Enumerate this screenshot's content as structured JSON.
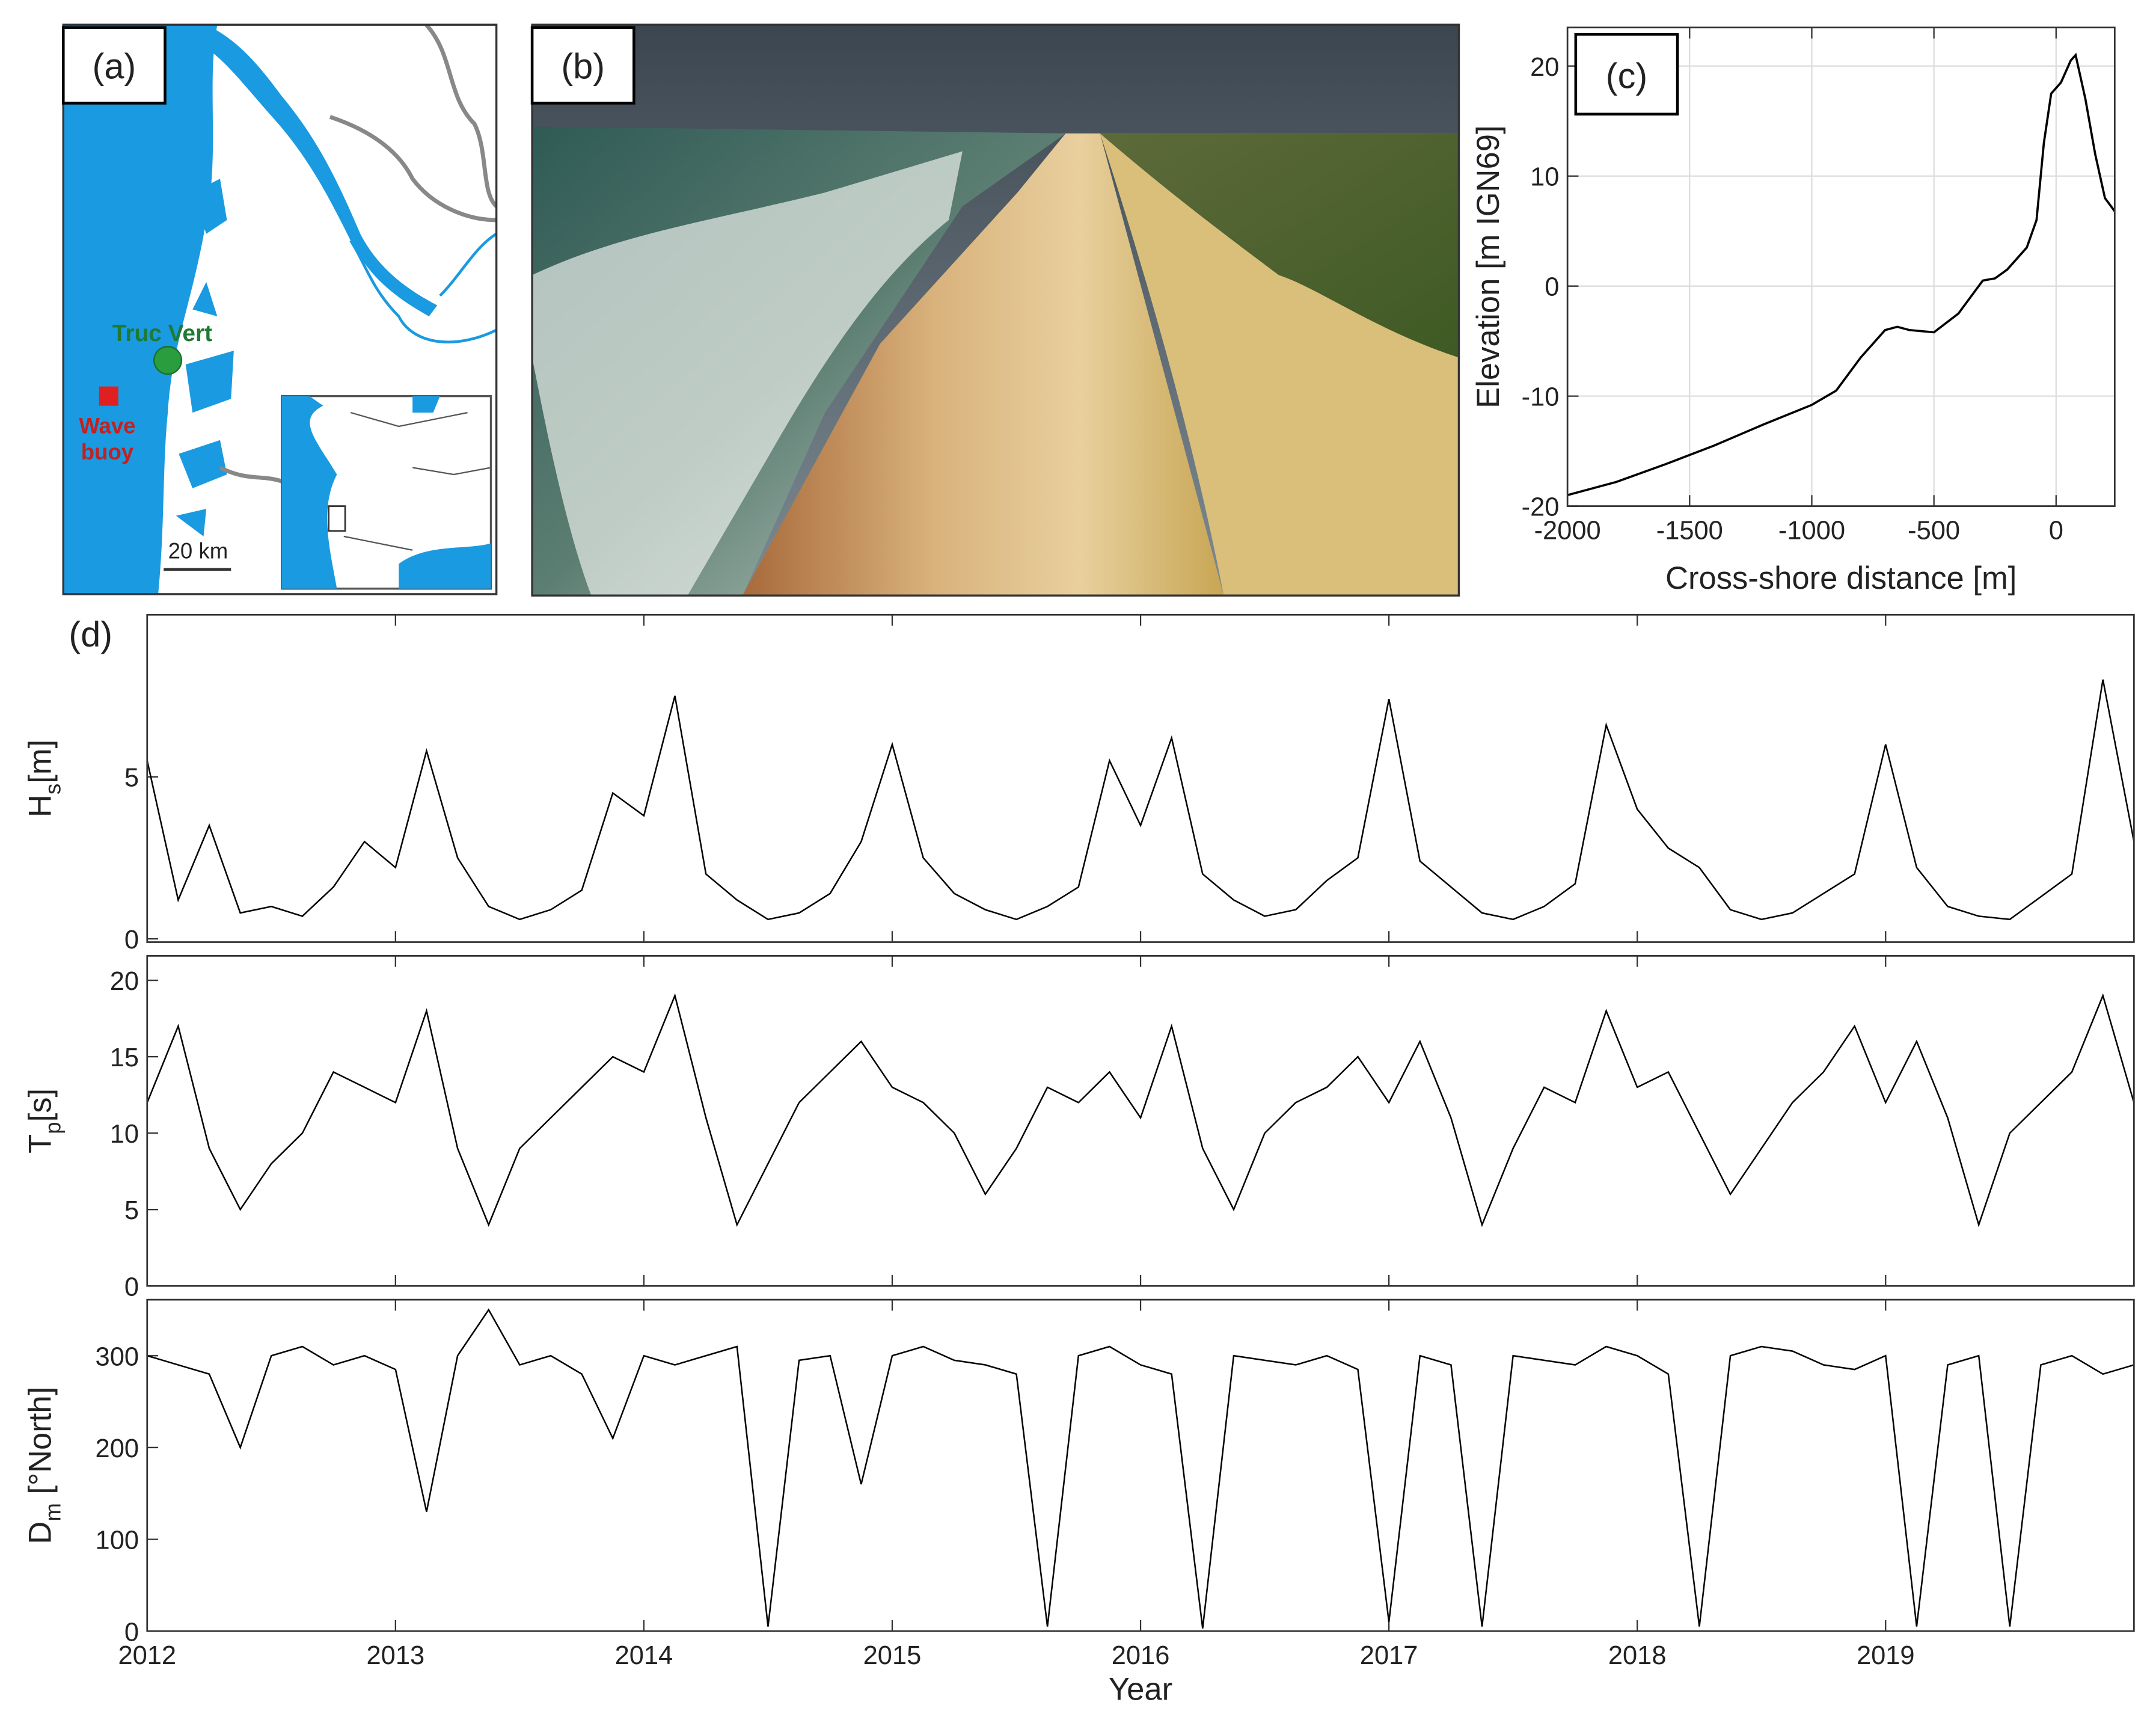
{
  "panels": {
    "a": {
      "label": "(a)",
      "site": "Truc Vert",
      "buoy": [
        "Wave",
        "buoy"
      ],
      "scale": "20 km"
    },
    "b": {
      "label": "(b)"
    },
    "d": {
      "label": "(d)"
    }
  },
  "chart_data": [
    {
      "type": "line",
      "annotation": "(c)",
      "xlabel": "Cross-shore distance [m]",
      "ylabel": "Elevation [m IGN69]",
      "x": [
        -2000,
        -1800,
        -1600,
        -1400,
        -1200,
        -1000,
        -900,
        -800,
        -700,
        -650,
        -600,
        -500,
        -400,
        -300,
        -250,
        -200,
        -120,
        -80,
        -50,
        -20,
        20,
        60,
        80,
        120,
        160,
        200,
        240
      ],
      "values": [
        -19,
        -17.8,
        -16.2,
        -14.5,
        -12.6,
        -10.8,
        -9.5,
        -6.5,
        -4,
        -3.7,
        -4,
        -4.2,
        -2.5,
        0.5,
        0.7,
        1.5,
        3.5,
        6,
        13,
        17.5,
        18.5,
        20.5,
        21,
        17,
        12,
        8,
        6.8
      ],
      "color": "#000000",
      "xlim": [
        -2000,
        240
      ],
      "ylim": [
        -20,
        23.5
      ],
      "xticks": [
        -2000,
        -1500,
        -1000,
        -500,
        0
      ],
      "yticks": [
        -20,
        -10,
        0,
        10,
        20
      ],
      "grid": true
    },
    {
      "type": "line",
      "ylabel": {
        "base": "H",
        "sub": "s",
        "unit": "[m]"
      },
      "color": "#000000",
      "x": [
        2012,
        2012.125,
        2012.25,
        2012.375,
        2012.5,
        2012.625,
        2012.75,
        2012.875,
        2013,
        2013.125,
        2013.25,
        2013.375,
        2013.5,
        2013.625,
        2013.75,
        2013.875,
        2014,
        2014.125,
        2014.25,
        2014.375,
        2014.5,
        2014.625,
        2014.75,
        2014.875,
        2015,
        2015.125,
        2015.25,
        2015.375,
        2015.5,
        2015.625,
        2015.75,
        2015.875,
        2016,
        2016.125,
        2016.25,
        2016.375,
        2016.5,
        2016.625,
        2016.75,
        2016.875,
        2017,
        2017.125,
        2017.25,
        2017.375,
        2017.5,
        2017.625,
        2017.75,
        2017.875,
        2018,
        2018.125,
        2018.25,
        2018.375,
        2018.5,
        2018.625,
        2018.75,
        2018.875,
        2019,
        2019.125,
        2019.25,
        2019.375,
        2019.5,
        2019.625,
        2019.75,
        2019.875,
        2020
      ],
      "values": [
        5.5,
        1.2,
        3.5,
        0.8,
        1.0,
        0.7,
        1.6,
        3.0,
        2.2,
        5.8,
        2.5,
        1.0,
        0.6,
        0.9,
        1.5,
        4.5,
        3.8,
        7.5,
        2.0,
        1.2,
        0.6,
        0.8,
        1.4,
        3.0,
        6.0,
        2.5,
        1.4,
        0.9,
        0.6,
        1.0,
        1.6,
        5.5,
        3.5,
        6.2,
        2.0,
        1.2,
        0.7,
        0.9,
        1.8,
        2.5,
        7.4,
        2.4,
        1.6,
        0.8,
        0.6,
        1.0,
        1.7,
        6.6,
        4.0,
        2.8,
        2.2,
        0.9,
        0.6,
        0.8,
        1.4,
        2.0,
        6.0,
        2.2,
        1.0,
        0.7,
        0.6,
        1.3,
        2.0,
        8.0,
        3.0
      ],
      "xlim": [
        2012,
        2020
      ],
      "ylim": [
        -0.1,
        10
      ],
      "xticks": [
        2012,
        2013,
        2014,
        2015,
        2016,
        2017,
        2018,
        2019
      ],
      "yticks": [
        0,
        5
      ]
    },
    {
      "type": "line",
      "ylabel": {
        "base": "T",
        "sub": "p",
        "unit": "[s]"
      },
      "color": "#000000",
      "x": [
        2012,
        2012.125,
        2012.25,
        2012.375,
        2012.5,
        2012.625,
        2012.75,
        2012.875,
        2013,
        2013.125,
        2013.25,
        2013.375,
        2013.5,
        2013.625,
        2013.75,
        2013.875,
        2014,
        2014.125,
        2014.25,
        2014.375,
        2014.5,
        2014.625,
        2014.75,
        2014.875,
        2015,
        2015.125,
        2015.25,
        2015.375,
        2015.5,
        2015.625,
        2015.75,
        2015.875,
        2016,
        2016.125,
        2016.25,
        2016.375,
        2016.5,
        2016.625,
        2016.75,
        2016.875,
        2017,
        2017.125,
        2017.25,
        2017.375,
        2017.5,
        2017.625,
        2017.75,
        2017.875,
        2018,
        2018.125,
        2018.25,
        2018.375,
        2018.5,
        2018.625,
        2018.75,
        2018.875,
        2019,
        2019.125,
        2019.25,
        2019.375,
        2019.5,
        2019.625,
        2019.75,
        2019.875,
        2020
      ],
      "values": [
        12,
        17,
        9,
        5,
        8,
        10,
        14,
        13,
        12,
        18,
        9,
        4,
        9,
        11,
        13,
        15,
        14,
        19,
        11,
        4,
        8,
        12,
        14,
        16,
        13,
        12,
        10,
        6,
        9,
        13,
        12,
        14,
        11,
        17,
        9,
        5,
        10,
        12,
        13,
        15,
        12,
        16,
        11,
        4,
        9,
        13,
        12,
        18,
        13,
        14,
        10,
        6,
        9,
        12,
        14,
        17,
        12,
        16,
        11,
        4,
        10,
        12,
        14,
        19,
        12
      ],
      "xlim": [
        2012,
        2020
      ],
      "ylim": [
        0,
        21.6
      ],
      "xticks": [
        2012,
        2013,
        2014,
        2015,
        2016,
        2017,
        2018,
        2019
      ],
      "yticks": [
        0,
        5,
        10,
        15,
        20
      ]
    },
    {
      "type": "line",
      "ylabel": {
        "base": "D",
        "sub": "m",
        "unit": " [°North]"
      },
      "xlabel": "Year",
      "color": "#000000",
      "x": [
        2012,
        2012.125,
        2012.25,
        2012.375,
        2012.5,
        2012.625,
        2012.75,
        2012.875,
        2013,
        2013.125,
        2013.25,
        2013.375,
        2013.5,
        2013.625,
        2013.75,
        2013.875,
        2014,
        2014.125,
        2014.25,
        2014.375,
        2014.5,
        2014.625,
        2014.75,
        2014.875,
        2015,
        2015.125,
        2015.25,
        2015.375,
        2015.5,
        2015.625,
        2015.75,
        2015.875,
        2016,
        2016.125,
        2016.25,
        2016.375,
        2016.5,
        2016.625,
        2016.75,
        2016.875,
        2017,
        2017.125,
        2017.25,
        2017.375,
        2017.5,
        2017.625,
        2017.75,
        2017.875,
        2018,
        2018.125,
        2018.25,
        2018.375,
        2018.5,
        2018.625,
        2018.75,
        2018.875,
        2019,
        2019.125,
        2019.25,
        2019.375,
        2019.5,
        2019.625,
        2019.75,
        2019.875,
        2020
      ],
      "values": [
        300,
        290,
        280,
        200,
        300,
        310,
        290,
        300,
        285,
        130,
        300,
        350,
        290,
        300,
        280,
        210,
        300,
        290,
        300,
        310,
        5,
        295,
        300,
        160,
        300,
        310,
        295,
        290,
        280,
        5,
        300,
        310,
        290,
        280,
        3,
        300,
        295,
        290,
        300,
        285,
        10,
        300,
        290,
        5,
        300,
        295,
        290,
        310,
        300,
        280,
        5,
        300,
        310,
        305,
        290,
        285,
        300,
        5,
        290,
        300,
        5,
        290,
        300,
        280,
        290
      ],
      "xlim": [
        2012,
        2020
      ],
      "ylim": [
        0,
        361
      ],
      "xticks": [
        2012,
        2013,
        2014,
        2015,
        2016,
        2017,
        2018,
        2019
      ],
      "yticks": [
        0,
        100,
        200,
        300
      ]
    }
  ]
}
